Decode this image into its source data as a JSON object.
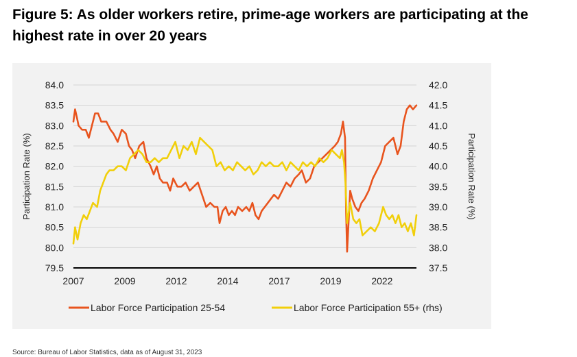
{
  "header": {
    "title": "Figure 5: As older workers retire, prime-age workers are participating at the highest rate in over 20 years"
  },
  "footer": {
    "source": "Source: Bureau of Labor Statistics, data as of August 31, 2023"
  },
  "chart_data": {
    "type": "line",
    "title": "Figure 5: As older workers retire, prime-age workers are participating at the highest rate in over 20 years",
    "xlabel": "",
    "ylabel": "Participation Rate (%)",
    "y2label": "Participation Rate (%)",
    "xlim": [
      2007,
      2023.67
    ],
    "ylim": [
      79.5,
      84.0
    ],
    "y2lim": [
      37.5,
      42.0
    ],
    "x_ticks": [
      "2007",
      "2009",
      "2012",
      "2014",
      "2017",
      "2019",
      "2022"
    ],
    "x_tick_values": [
      2007.0,
      2009.5,
      2012.0,
      2014.5,
      2017.0,
      2019.5,
      2022.0
    ],
    "y_ticks": [
      "79.5",
      "80.0",
      "80.5",
      "81.0",
      "81.5",
      "82.0",
      "82.5",
      "83.0",
      "83.5",
      "84.0"
    ],
    "y2_ticks": [
      "37.5",
      "38.0",
      "38.5",
      "39.0",
      "39.5",
      "40.0",
      "40.5",
      "41.0",
      "41.5",
      "42.0"
    ],
    "grid": "horizontal",
    "legend_position": "bottom",
    "series": [
      {
        "name": "Labor Force Participation 25-54",
        "axis": "left",
        "color": "#e8541e",
        "points": [
          [
            2007.0,
            83.1
          ],
          [
            2007.08,
            83.4
          ],
          [
            2007.17,
            83.2
          ],
          [
            2007.25,
            83.0
          ],
          [
            2007.42,
            82.9
          ],
          [
            2007.6,
            82.9
          ],
          [
            2007.75,
            82.7
          ],
          [
            2007.9,
            83.0
          ],
          [
            2008.05,
            83.3
          ],
          [
            2008.2,
            83.3
          ],
          [
            2008.35,
            83.1
          ],
          [
            2008.6,
            83.1
          ],
          [
            2008.8,
            82.9
          ],
          [
            2008.95,
            82.8
          ],
          [
            2009.15,
            82.6
          ],
          [
            2009.35,
            82.9
          ],
          [
            2009.55,
            82.8
          ],
          [
            2009.7,
            82.5
          ],
          [
            2009.85,
            82.4
          ],
          [
            2010.0,
            82.2
          ],
          [
            2010.2,
            82.5
          ],
          [
            2010.4,
            82.6
          ],
          [
            2010.55,
            82.2
          ],
          [
            2010.75,
            82.0
          ],
          [
            2010.9,
            81.8
          ],
          [
            2011.05,
            82.0
          ],
          [
            2011.2,
            81.7
          ],
          [
            2011.35,
            81.6
          ],
          [
            2011.55,
            81.6
          ],
          [
            2011.7,
            81.4
          ],
          [
            2011.85,
            81.7
          ],
          [
            2012.05,
            81.5
          ],
          [
            2012.25,
            81.5
          ],
          [
            2012.45,
            81.6
          ],
          [
            2012.65,
            81.4
          ],
          [
            2012.85,
            81.5
          ],
          [
            2013.05,
            81.6
          ],
          [
            2013.25,
            81.3
          ],
          [
            2013.45,
            81.0
          ],
          [
            2013.65,
            81.1
          ],
          [
            2013.85,
            81.0
          ],
          [
            2014.0,
            81.0
          ],
          [
            2014.1,
            80.6
          ],
          [
            2014.25,
            80.9
          ],
          [
            2014.4,
            81.0
          ],
          [
            2014.55,
            80.8
          ],
          [
            2014.7,
            80.9
          ],
          [
            2014.85,
            80.8
          ],
          [
            2015.0,
            81.0
          ],
          [
            2015.2,
            80.9
          ],
          [
            2015.4,
            81.0
          ],
          [
            2015.55,
            80.9
          ],
          [
            2015.7,
            81.1
          ],
          [
            2015.85,
            80.8
          ],
          [
            2016.0,
            80.7
          ],
          [
            2016.15,
            80.9
          ],
          [
            2016.3,
            81.0
          ],
          [
            2016.45,
            81.1
          ],
          [
            2016.6,
            81.2
          ],
          [
            2016.75,
            81.3
          ],
          [
            2016.95,
            81.2
          ],
          [
            2017.15,
            81.4
          ],
          [
            2017.35,
            81.6
          ],
          [
            2017.55,
            81.5
          ],
          [
            2017.75,
            81.7
          ],
          [
            2017.95,
            81.8
          ],
          [
            2018.1,
            81.9
          ],
          [
            2018.3,
            81.6
          ],
          [
            2018.5,
            81.7
          ],
          [
            2018.7,
            82.0
          ],
          [
            2018.9,
            82.1
          ],
          [
            2019.1,
            82.2
          ],
          [
            2019.3,
            82.3
          ],
          [
            2019.5,
            82.4
          ],
          [
            2019.7,
            82.5
          ],
          [
            2019.85,
            82.6
          ],
          [
            2020.0,
            82.8
          ],
          [
            2020.1,
            83.1
          ],
          [
            2020.2,
            82.7
          ],
          [
            2020.25,
            80.9
          ],
          [
            2020.3,
            79.9
          ],
          [
            2020.45,
            81.4
          ],
          [
            2020.55,
            81.2
          ],
          [
            2020.7,
            81.0
          ],
          [
            2020.85,
            80.9
          ],
          [
            2021.0,
            81.1
          ],
          [
            2021.15,
            81.2
          ],
          [
            2021.35,
            81.4
          ],
          [
            2021.55,
            81.7
          ],
          [
            2021.75,
            81.9
          ],
          [
            2021.95,
            82.1
          ],
          [
            2022.15,
            82.5
          ],
          [
            2022.35,
            82.6
          ],
          [
            2022.55,
            82.7
          ],
          [
            2022.75,
            82.3
          ],
          [
            2022.9,
            82.5
          ],
          [
            2023.05,
            83.1
          ],
          [
            2023.2,
            83.4
          ],
          [
            2023.35,
            83.5
          ],
          [
            2023.5,
            83.4
          ],
          [
            2023.67,
            83.5
          ]
        ]
      },
      {
        "name": "Labor Force Participation 55+ (rhs)",
        "axis": "right",
        "color": "#f1cf0a",
        "points": [
          [
            2007.0,
            38.1
          ],
          [
            2007.08,
            38.5
          ],
          [
            2007.2,
            38.2
          ],
          [
            2007.35,
            38.6
          ],
          [
            2007.5,
            38.8
          ],
          [
            2007.65,
            38.7
          ],
          [
            2007.8,
            38.9
          ],
          [
            2007.95,
            39.1
          ],
          [
            2008.15,
            39.0
          ],
          [
            2008.3,
            39.4
          ],
          [
            2008.45,
            39.6
          ],
          [
            2008.6,
            39.8
          ],
          [
            2008.75,
            39.9
          ],
          [
            2008.95,
            39.9
          ],
          [
            2009.15,
            40.0
          ],
          [
            2009.35,
            40.0
          ],
          [
            2009.55,
            39.9
          ],
          [
            2009.75,
            40.2
          ],
          [
            2009.95,
            40.3
          ],
          [
            2010.15,
            40.4
          ],
          [
            2010.35,
            40.3
          ],
          [
            2010.55,
            40.1
          ],
          [
            2010.75,
            40.1
          ],
          [
            2010.95,
            40.2
          ],
          [
            2011.15,
            40.1
          ],
          [
            2011.35,
            40.2
          ],
          [
            2011.55,
            40.2
          ],
          [
            2011.75,
            40.4
          ],
          [
            2011.95,
            40.6
          ],
          [
            2012.15,
            40.2
          ],
          [
            2012.35,
            40.5
          ],
          [
            2012.55,
            40.4
          ],
          [
            2012.75,
            40.6
          ],
          [
            2012.95,
            40.3
          ],
          [
            2013.15,
            40.7
          ],
          [
            2013.35,
            40.6
          ],
          [
            2013.55,
            40.5
          ],
          [
            2013.75,
            40.4
          ],
          [
            2013.95,
            40.0
          ],
          [
            2014.15,
            40.1
          ],
          [
            2014.35,
            39.9
          ],
          [
            2014.55,
            40.0
          ],
          [
            2014.75,
            39.9
          ],
          [
            2014.95,
            40.1
          ],
          [
            2015.15,
            40.0
          ],
          [
            2015.35,
            39.9
          ],
          [
            2015.55,
            40.0
          ],
          [
            2015.75,
            39.8
          ],
          [
            2015.95,
            39.9
          ],
          [
            2016.15,
            40.1
          ],
          [
            2016.35,
            40.0
          ],
          [
            2016.55,
            40.1
          ],
          [
            2016.75,
            40.0
          ],
          [
            2016.95,
            40.0
          ],
          [
            2017.15,
            40.1
          ],
          [
            2017.35,
            39.9
          ],
          [
            2017.55,
            40.1
          ],
          [
            2017.75,
            40.0
          ],
          [
            2017.95,
            39.9
          ],
          [
            2018.15,
            40.1
          ],
          [
            2018.35,
            40.0
          ],
          [
            2018.55,
            40.1
          ],
          [
            2018.75,
            40.0
          ],
          [
            2018.95,
            40.2
          ],
          [
            2019.15,
            40.1
          ],
          [
            2019.35,
            40.2
          ],
          [
            2019.55,
            40.4
          ],
          [
            2019.75,
            40.3
          ],
          [
            2019.95,
            40.2
          ],
          [
            2020.05,
            40.4
          ],
          [
            2020.15,
            40.1
          ],
          [
            2020.22,
            39.6
          ],
          [
            2020.3,
            38.6
          ],
          [
            2020.45,
            39.1
          ],
          [
            2020.6,
            38.7
          ],
          [
            2020.75,
            38.6
          ],
          [
            2020.9,
            38.7
          ],
          [
            2021.05,
            38.3
          ],
          [
            2021.25,
            38.4
          ],
          [
            2021.45,
            38.5
          ],
          [
            2021.65,
            38.4
          ],
          [
            2021.85,
            38.6
          ],
          [
            2022.05,
            39.0
          ],
          [
            2022.2,
            38.8
          ],
          [
            2022.35,
            38.7
          ],
          [
            2022.5,
            38.8
          ],
          [
            2022.65,
            38.6
          ],
          [
            2022.8,
            38.8
          ],
          [
            2022.95,
            38.5
          ],
          [
            2023.1,
            38.6
          ],
          [
            2023.25,
            38.4
          ],
          [
            2023.4,
            38.6
          ],
          [
            2023.55,
            38.3
          ],
          [
            2023.67,
            38.8
          ]
        ]
      }
    ]
  }
}
